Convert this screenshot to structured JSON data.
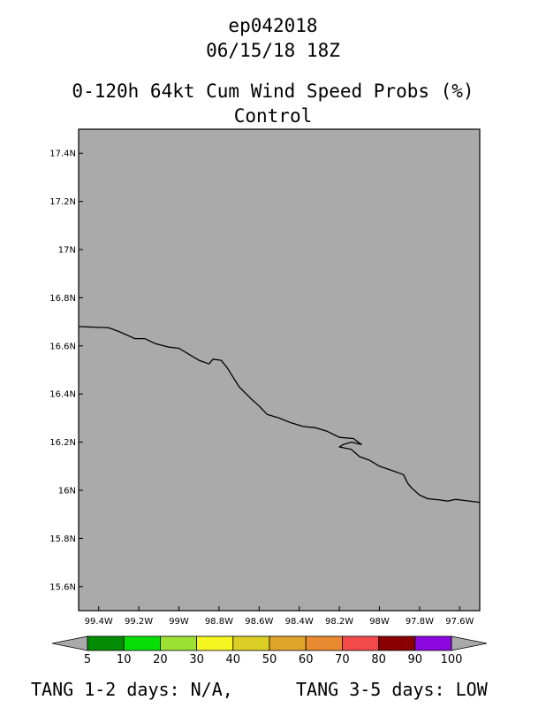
{
  "title": {
    "storm_id": "ep042018",
    "datetime": "06/15/18 18Z",
    "product": "0-120h 64kt Cum Wind Speed Probs (%)",
    "run": "Control"
  },
  "map": {
    "background_color": "#aaaaaa",
    "coastline_color": "#000000",
    "lat_range": [
      15.5,
      17.5
    ],
    "lon_range": [
      -99.5,
      -97.5
    ],
    "lat_ticks": [
      {
        "value": 17.4,
        "label": "17.4N"
      },
      {
        "value": 17.2,
        "label": "17.2N"
      },
      {
        "value": 17.0,
        "label": "17N"
      },
      {
        "value": 16.8,
        "label": "16.8N"
      },
      {
        "value": 16.6,
        "label": "16.6N"
      },
      {
        "value": 16.4,
        "label": "16.4N"
      },
      {
        "value": 16.2,
        "label": "16.2N"
      },
      {
        "value": 16.0,
        "label": "16N"
      },
      {
        "value": 15.8,
        "label": "15.8N"
      },
      {
        "value": 15.6,
        "label": "15.6N"
      }
    ],
    "lon_ticks": [
      {
        "value": -99.4,
        "label": "99.4W"
      },
      {
        "value": -99.2,
        "label": "99.2W"
      },
      {
        "value": -99.0,
        "label": "99W"
      },
      {
        "value": -98.8,
        "label": "98.8W"
      },
      {
        "value": -98.6,
        "label": "98.6W"
      },
      {
        "value": -98.4,
        "label": "98.4W"
      },
      {
        "value": -98.2,
        "label": "98.2W"
      },
      {
        "value": -98.0,
        "label": "98W"
      },
      {
        "value": -97.8,
        "label": "97.8W"
      },
      {
        "value": -97.6,
        "label": "97.6W"
      }
    ],
    "coastline": [
      [
        -99.5,
        16.68
      ],
      [
        -99.35,
        16.675
      ],
      [
        -99.3,
        16.66
      ],
      [
        -99.22,
        16.63
      ],
      [
        -99.17,
        16.63
      ],
      [
        -99.12,
        16.61
      ],
      [
        -99.05,
        16.595
      ],
      [
        -99.0,
        16.59
      ],
      [
        -98.95,
        16.565
      ],
      [
        -98.9,
        16.54
      ],
      [
        -98.85,
        16.525
      ],
      [
        -98.83,
        16.545
      ],
      [
        -98.79,
        16.54
      ],
      [
        -98.76,
        16.51
      ],
      [
        -98.7,
        16.43
      ],
      [
        -98.64,
        16.38
      ],
      [
        -98.6,
        16.35
      ],
      [
        -98.56,
        16.315
      ],
      [
        -98.5,
        16.3
      ],
      [
        -98.44,
        16.28
      ],
      [
        -98.38,
        16.265
      ],
      [
        -98.32,
        16.26
      ],
      [
        -98.26,
        16.245
      ],
      [
        -98.2,
        16.22
      ],
      [
        -98.13,
        16.215
      ],
      [
        -98.09,
        16.19
      ],
      [
        -98.14,
        16.2
      ],
      [
        -98.18,
        16.19
      ],
      [
        -98.2,
        16.18
      ],
      [
        -98.14,
        16.17
      ],
      [
        -98.1,
        16.14
      ],
      [
        -98.05,
        16.125
      ],
      [
        -98.0,
        16.1
      ],
      [
        -97.93,
        16.08
      ],
      [
        -97.88,
        16.065
      ],
      [
        -97.86,
        16.03
      ],
      [
        -97.84,
        16.01
      ],
      [
        -97.8,
        15.98
      ],
      [
        -97.76,
        15.965
      ],
      [
        -97.7,
        15.96
      ],
      [
        -97.66,
        15.955
      ],
      [
        -97.62,
        15.962
      ],
      [
        -97.58,
        15.958
      ],
      [
        -97.5,
        15.95
      ]
    ]
  },
  "colorbar": {
    "levels": [
      "5",
      "10",
      "20",
      "30",
      "40",
      "50",
      "60",
      "70",
      "80",
      "90",
      "100"
    ],
    "colors": [
      "#048c04",
      "#06de06",
      "#9ce034",
      "#f5f522",
      "#dbcf26",
      "#e0a62c",
      "#ea8a30",
      "#f24949",
      "#8a0000",
      "#8b08e0"
    ],
    "end_color": "#aaaaaa"
  },
  "footer": {
    "left": "TANG 1-2 days:  N/A,",
    "right": "TANG 3-5 days:  LOW"
  }
}
